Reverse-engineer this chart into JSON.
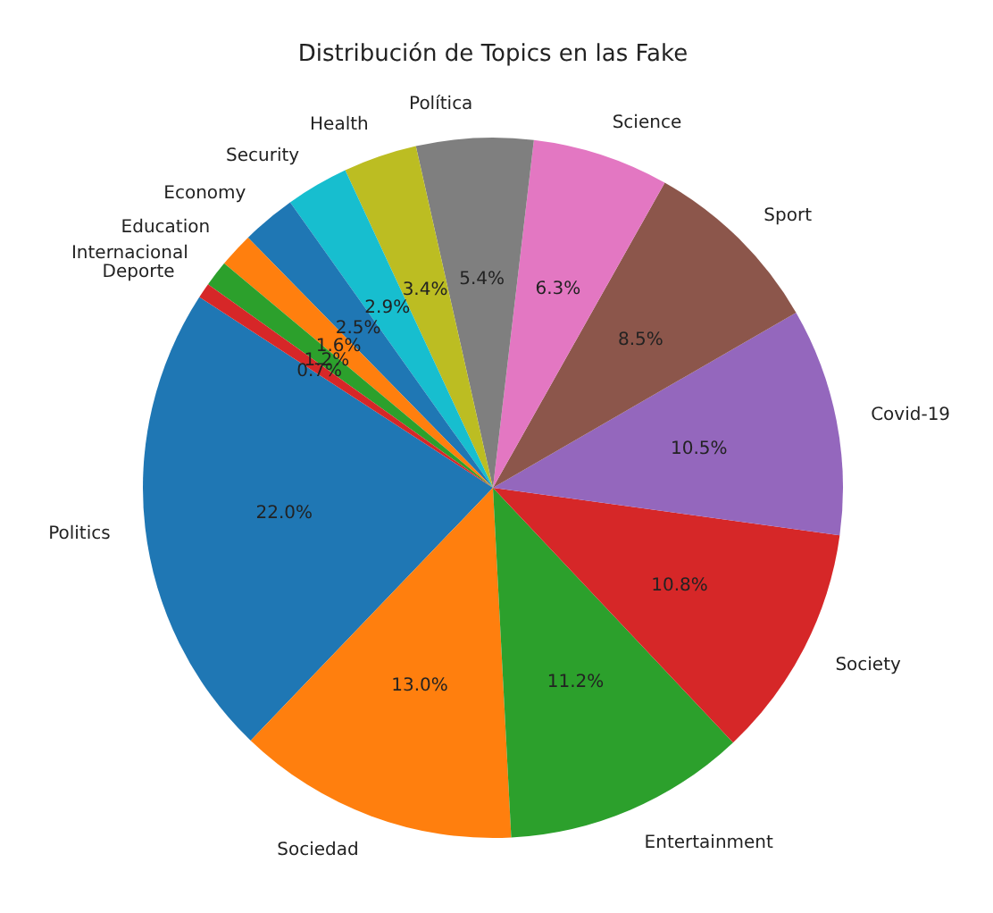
{
  "chart_data": {
    "type": "pie",
    "title": "Distribución de Topics en las Fake",
    "categories": [
      "Politics",
      "Sociedad",
      "Entertainment",
      "Society",
      "Covid-19",
      "Sport",
      "Science",
      "Política",
      "Health",
      "Security",
      "Economy",
      "Education",
      "Internacional",
      "Deporte"
    ],
    "values": [
      22.0,
      13.0,
      11.2,
      10.8,
      10.5,
      8.5,
      6.3,
      5.4,
      3.4,
      2.9,
      2.5,
      1.6,
      1.2,
      0.7
    ],
    "colors": [
      "#1f77b4",
      "#ff7f0e",
      "#2ca02c",
      "#d62728",
      "#9467bd",
      "#8c564b",
      "#e377c2",
      "#7f7f7f",
      "#bcbd22",
      "#17becf",
      "#1f77b4",
      "#ff7f0e",
      "#2ca02c",
      "#d62728"
    ],
    "value_labels": [
      "22.0%",
      "13.0%",
      "11.2%",
      "10.8%",
      "10.5%",
      "8.5%",
      "6.3%",
      "5.4%",
      "3.4%",
      "2.9%",
      "2.5%",
      "1.6%",
      "1.2%",
      "0.7%"
    ]
  }
}
